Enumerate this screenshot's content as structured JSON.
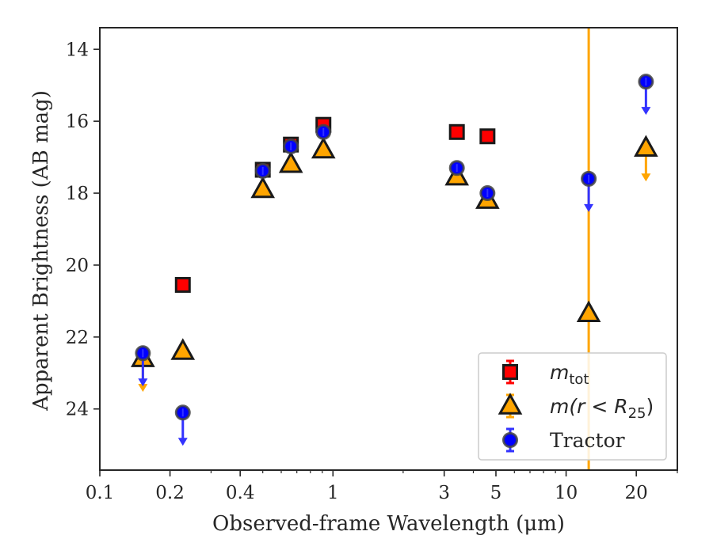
{
  "chart_data": {
    "type": "scatter",
    "xscale": "log",
    "xlim": [
      0.1,
      30
    ],
    "ylim": [
      25.7,
      13.4
    ],
    "y_inverted": true,
    "xlabel": "Observed-frame Wavelength (μm)",
    "ylabel": "Apparent Brightness (AB mag)",
    "x_ticks": [
      {
        "value": 0.1,
        "label": "0.1"
      },
      {
        "value": 0.2,
        "label": "0.2"
      },
      {
        "value": 0.4,
        "label": "0.4"
      },
      {
        "value": 1,
        "label": "1"
      },
      {
        "value": 3,
        "label": "3"
      },
      {
        "value": 5,
        "label": "5"
      },
      {
        "value": 10,
        "label": "10"
      },
      {
        "value": 20,
        "label": "20"
      }
    ],
    "y_ticks": [
      {
        "value": 14,
        "label": "14"
      },
      {
        "value": 16,
        "label": "16"
      },
      {
        "value": 18,
        "label": "18"
      },
      {
        "value": 20,
        "label": "20"
      },
      {
        "value": 22,
        "label": "22"
      },
      {
        "value": 24,
        "label": "24"
      }
    ],
    "vertical_line": {
      "x": 12.5,
      "color": "#ffa500"
    },
    "legend": {
      "position": "lower right",
      "entries": [
        {
          "label_main": "m",
          "label_sub": "tot",
          "series": "m_tot"
        },
        {
          "label_text": "m(r < R",
          "label_sub": "25",
          "label_close": ")",
          "series": "m_r25"
        },
        {
          "label_text": "Tractor",
          "series": "tractor"
        }
      ]
    },
    "series": [
      {
        "id": "m_tot",
        "marker": "square",
        "color": "#ff0000",
        "points": [
          {
            "x": 0.227,
            "y": 20.55
          },
          {
            "x": 0.5,
            "y": 17.35
          },
          {
            "x": 0.66,
            "y": 16.65
          },
          {
            "x": 0.91,
            "y": 16.1
          },
          {
            "x": 3.4,
            "y": 16.3
          },
          {
            "x": 4.6,
            "y": 16.42
          }
        ]
      },
      {
        "id": "m_r25",
        "marker": "triangle",
        "color": "#ffa500",
        "points": [
          {
            "x": 0.153,
            "y": 22.6,
            "upper_limit": true
          },
          {
            "x": 0.227,
            "y": 22.4
          },
          {
            "x": 0.5,
            "y": 17.9
          },
          {
            "x": 0.66,
            "y": 17.2
          },
          {
            "x": 0.91,
            "y": 16.8
          },
          {
            "x": 3.4,
            "y": 17.55
          },
          {
            "x": 4.6,
            "y": 18.2
          },
          {
            "x": 12.5,
            "y": 21.35
          },
          {
            "x": 22.0,
            "y": 16.75,
            "upper_limit": true
          }
        ]
      },
      {
        "id": "tractor",
        "marker": "circle",
        "color": "#0000ff",
        "points": [
          {
            "x": 0.153,
            "y": 22.45,
            "upper_limit": true
          },
          {
            "x": 0.227,
            "y": 24.1,
            "upper_limit": true
          },
          {
            "x": 0.5,
            "y": 17.38
          },
          {
            "x": 0.66,
            "y": 16.7
          },
          {
            "x": 0.91,
            "y": 16.3
          },
          {
            "x": 3.4,
            "y": 17.3
          },
          {
            "x": 4.6,
            "y": 18.0
          },
          {
            "x": 12.5,
            "y": 17.6,
            "upper_limit": true
          },
          {
            "x": 22.0,
            "y": 14.9,
            "upper_limit": true
          }
        ]
      }
    ]
  }
}
